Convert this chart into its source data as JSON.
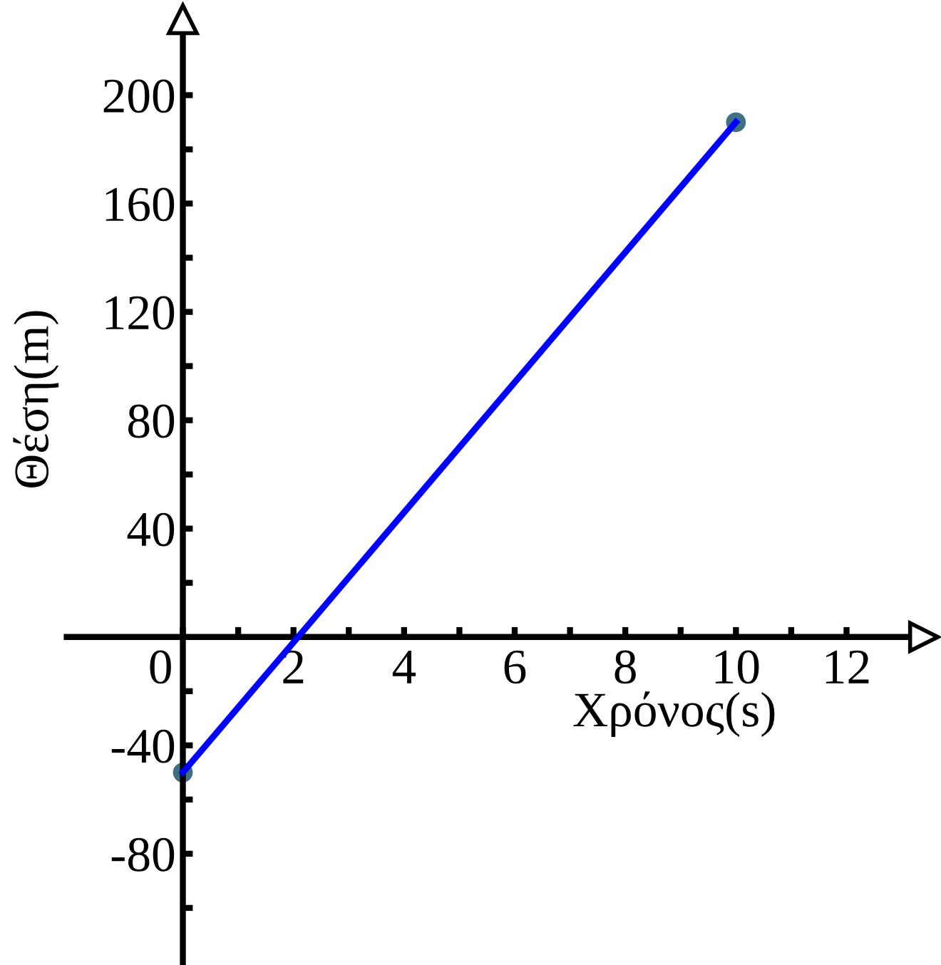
{
  "chart_data": {
    "type": "line",
    "xlabel": "Χρόνος(s)",
    "ylabel": "Θέση(m)",
    "xlim": [
      -2.1,
      13.4
    ],
    "ylim": [
      -120,
      228
    ],
    "xticks": [
      0,
      {
        "value": 1,
        "label": null
      },
      2,
      {
        "value": 3,
        "label": null
      },
      4,
      {
        "value": 5,
        "label": null
      },
      6,
      {
        "value": 7,
        "label": null
      },
      8,
      {
        "value": 9,
        "label": null
      },
      10,
      {
        "value": 11,
        "label": null
      },
      12
    ],
    "yticks": [
      {
        "value": -100,
        "label": null
      },
      -80,
      {
        "value": -60,
        "label": null
      },
      -40,
      {
        "value": -20,
        "label": null
      },
      {
        "value": 20,
        "label": null
      },
      40,
      {
        "value": 60,
        "label": null
      },
      80,
      {
        "value": 100,
        "label": null
      },
      120,
      {
        "value": 140,
        "label": null
      },
      160,
      {
        "value": 180,
        "label": null
      },
      200
    ],
    "grid": false,
    "x": [
      0,
      10
    ],
    "series": [
      {
        "type": "scatter",
        "values": [
          -50,
          190
        ],
        "color": "#3f6f80",
        "marker": "circle"
      },
      {
        "values": [
          -50,
          190
        ],
        "color": "#0000ff",
        "marker": "none",
        "line_style": "solid"
      }
    ]
  }
}
